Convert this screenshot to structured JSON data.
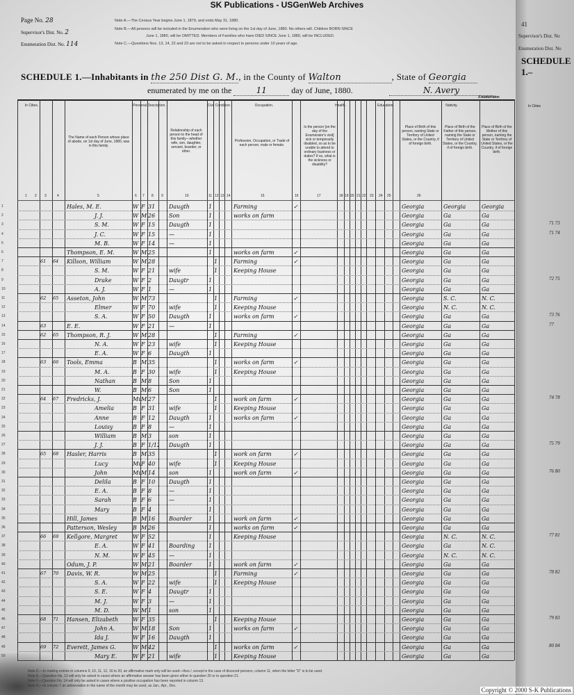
{
  "banner": "SK Publications - USGenWeb Archives",
  "meta": {
    "page_label": "Page No.",
    "page_value": "28",
    "supervisor_label": "Supervisor's Dist. No.",
    "supervisor_value": "2",
    "enumeration_label": "Enumeration Dist. No.",
    "enumeration_value": "114"
  },
  "notes": [
    "Note A.—The Census Year begins June 1, 1879, and ends May 31, 1880.",
    "Note B.—All persons will be included in the Enumeration who were living on the 1st day of June, 1880. No others will. Children BORN SINCE",
    "June 1, 1880, will be OMITTED. Members of Families who have DIED SINCE June 1, 1880, will be INCLUDED.",
    "Note C.—Questions Nos. 13, 14, 22 and 23 are not to be asked in respect to persons under 10 years of age."
  ],
  "schedule": {
    "prefix": "SCHEDULE 1.—Inhabitants in",
    "district": "the 250 Dist G. M.",
    "county_label": ", in the County of",
    "county": "Walton",
    "state_label": ", State of",
    "state": "Georgia",
    "enum_prefix": "enumerated by me on the",
    "enum_day": "11",
    "enum_suffix": "day of June, 1880.",
    "enumerator_signature": "N. Avery",
    "enumerator_label": "Enumerator."
  },
  "column_groups": {
    "in_cities": "In Cities.",
    "personal": "Personal Description.",
    "civil": "Civil Condition.",
    "occupation": "Occupation.",
    "health": "Health.",
    "education": "Education.",
    "nativity": "Nativity."
  },
  "column_headers": {
    "name": "The Name of each Person whose place of abode, on 1st day of June, 1880, was in this family.",
    "relationship": "Relationship of each person to the head of this family—whether wife, son, daughter, servant, boarder, or other.",
    "occupation": "Profession, Occupation, or Trade of each person, male or female.",
    "sickness": "Is the person [on the day of the Enumerator's visit] sick or temporarily disabled, so as to be unable to attend to ordinary business or duties? If so, what is the sickness or disability?",
    "birthplace": "Place of Birth of this person, naming State or Territory of United States, or the Country, if of foreign birth.",
    "father_birth": "Place of Birth of the Father of this person, naming the State or Territory of United States, or the Country, if of foreign birth.",
    "mother_birth": "Place of Birth of the Mother of this person, naming the State or Territory of United States, or the Country, if of foreign birth."
  },
  "column_numbers": [
    "1",
    "2",
    "3",
    "4",
    "5",
    "6",
    "7",
    "8",
    "9",
    "10",
    "11",
    "12",
    "13",
    "14",
    "15",
    "16",
    "17",
    "18",
    "19",
    "20",
    "21",
    "22",
    "23",
    "24",
    "25",
    "26"
  ],
  "rows": [
    {
      "n": "1",
      "dw": "",
      "fam": "",
      "name": "Hales, M. E.",
      "color": "W",
      "sex": "F",
      "age": "31",
      "rel": "Daugth",
      "s": "1",
      "m": "",
      "occ": "Farming",
      "chk": "✓",
      "bp": "Georgia",
      "fbp": "Georgia",
      "mbp": "Georgia"
    },
    {
      "n": "2",
      "dw": "",
      "fam": "",
      "name": "J. J.",
      "color": "W",
      "sex": "M",
      "age": "26",
      "rel": "Son",
      "s": "1",
      "m": "",
      "occ": "works on farm",
      "chk": "",
      "bp": "Georgia",
      "fbp": "Ga",
      "mbp": "Ga"
    },
    {
      "n": "3",
      "dw": "",
      "fam": "",
      "name": "S. M.",
      "color": "W",
      "sex": "F",
      "age": "15",
      "rel": "Daugth",
      "s": "1",
      "m": "",
      "occ": "",
      "chk": "",
      "bp": "Georgia",
      "fbp": "Ga",
      "mbp": "Ga"
    },
    {
      "n": "4",
      "dw": "",
      "fam": "",
      "name": "J. C.",
      "color": "W",
      "sex": "F",
      "age": "15",
      "rel": "—",
      "s": "1",
      "m": "",
      "occ": "",
      "chk": "",
      "bp": "Georgia",
      "fbp": "Ga",
      "mbp": "Ga"
    },
    {
      "n": "5",
      "dw": "",
      "fam": "",
      "name": "M. B.",
      "color": "W",
      "sex": "F",
      "age": "14",
      "rel": "—",
      "s": "1",
      "m": "",
      "occ": "",
      "chk": "",
      "bp": "Georgia",
      "fbp": "Ga",
      "mbp": "Ga"
    },
    {
      "n": "6",
      "dw": "",
      "fam": "",
      "name": "Thompson, E. M.",
      "color": "W",
      "sex": "M",
      "age": "25",
      "rel": "",
      "s": "1",
      "m": "",
      "occ": "works on farm",
      "chk": "✓",
      "bp": "Georgia",
      "fbp": "Ga",
      "mbp": "Ga"
    },
    {
      "n": "7",
      "dw": "61",
      "fam": "64",
      "name": "Killson, William",
      "color": "W",
      "sex": "M",
      "age": "28",
      "rel": "",
      "s": "",
      "m": "1",
      "occ": "Farming",
      "chk": "✓",
      "bp": "Georgia",
      "fbp": "Ga",
      "mbp": "Ga"
    },
    {
      "n": "8",
      "dw": "",
      "fam": "",
      "name": "S. M.",
      "color": "W",
      "sex": "F",
      "age": "21",
      "rel": "wife",
      "s": "",
      "m": "1",
      "occ": "Keeping House",
      "chk": "",
      "bp": "Georgia",
      "fbp": "Ga",
      "mbp": "Ga"
    },
    {
      "n": "9",
      "dw": "",
      "fam": "",
      "name": "Drake",
      "color": "W",
      "sex": "F",
      "age": "2",
      "rel": "Daugtr",
      "s": "1",
      "m": "",
      "occ": "",
      "chk": "",
      "bp": "Georgia",
      "fbp": "Ga",
      "mbp": "Ga"
    },
    {
      "n": "10",
      "dw": "",
      "fam": "",
      "name": "A. J.",
      "color": "W",
      "sex": "F",
      "age": "1",
      "rel": "—",
      "s": "1",
      "m": "",
      "occ": "",
      "chk": "",
      "bp": "Georgia",
      "fbp": "Ga",
      "mbp": "Ga"
    },
    {
      "n": "11",
      "dw": "62",
      "fam": "65",
      "name": "Asseton, John",
      "color": "W",
      "sex": "M",
      "age": "73",
      "rel": "",
      "s": "",
      "m": "1",
      "occ": "Farming",
      "chk": "✓",
      "bp": "Georgia",
      "fbp": "S. C.",
      "mbp": "N. C."
    },
    {
      "n": "12",
      "dw": "",
      "fam": "",
      "name": "Elmer",
      "color": "W",
      "sex": "F",
      "age": "70",
      "rel": "wife",
      "s": "",
      "m": "1",
      "occ": "Keeping House",
      "chk": "",
      "bp": "Georgia",
      "fbp": "N. C.",
      "mbp": "N. C."
    },
    {
      "n": "13",
      "dw": "",
      "fam": "",
      "name": "S. A.",
      "color": "W",
      "sex": "F",
      "age": "50",
      "rel": "Daugth",
      "s": "1",
      "m": "",
      "occ": "works on farm",
      "chk": "✓",
      "bp": "Georgia",
      "fbp": "Ga",
      "mbp": "Ga"
    },
    {
      "n": "14",
      "dw": "63",
      "fam": "",
      "name": "E. E.",
      "color": "W",
      "sex": "F",
      "age": "21",
      "rel": "—",
      "s": "1",
      "m": "",
      "occ": "",
      "chk": "",
      "bp": "Georgia",
      "fbp": "Ga",
      "mbp": "Ga"
    },
    {
      "n": "15",
      "dw": "62",
      "fam": "65",
      "name": "Thompson, R. J.",
      "color": "W",
      "sex": "M",
      "age": "28",
      "rel": "",
      "s": "",
      "m": "1",
      "occ": "Farming",
      "chk": "✓",
      "bp": "Georgia",
      "fbp": "Ga",
      "mbp": "Ga"
    },
    {
      "n": "16",
      "dw": "",
      "fam": "",
      "name": "N. A.",
      "color": "W",
      "sex": "F",
      "age": "23",
      "rel": "wife",
      "s": "",
      "m": "1",
      "occ": "Keeping House",
      "chk": "",
      "bp": "Georgia",
      "fbp": "Ga",
      "mbp": "Ga"
    },
    {
      "n": "17",
      "dw": "",
      "fam": "",
      "name": "E. A.",
      "color": "W",
      "sex": "F",
      "age": "6",
      "rel": "Daugth",
      "s": "1",
      "m": "",
      "occ": "",
      "chk": "",
      "bp": "Georgia",
      "fbp": "Ga",
      "mbp": "Ga"
    },
    {
      "n": "18",
      "dw": "63",
      "fam": "66",
      "name": "Tools, Emma",
      "color": "B",
      "sex": "M",
      "age": "35",
      "rel": "",
      "s": "",
      "m": "1",
      "occ": "works on farm",
      "chk": "✓",
      "bp": "Georgia",
      "fbp": "Ga",
      "mbp": "Ga"
    },
    {
      "n": "19",
      "dw": "",
      "fam": "",
      "name": "M. A.",
      "color": "B",
      "sex": "F",
      "age": "30",
      "rel": "wife",
      "s": "",
      "m": "1",
      "occ": "Keeping House",
      "chk": "",
      "bp": "Georgia",
      "fbp": "Ga",
      "mbp": "Ga"
    },
    {
      "n": "20",
      "dw": "",
      "fam": "",
      "name": "Nathan",
      "color": "B",
      "sex": "M",
      "age": "8",
      "rel": "Son",
      "s": "1",
      "m": "",
      "occ": "",
      "chk": "",
      "bp": "Georgia",
      "fbp": "Ga",
      "mbp": "Ga"
    },
    {
      "n": "21",
      "dw": "",
      "fam": "",
      "name": "W.",
      "color": "B",
      "sex": "M",
      "age": "6",
      "rel": "Son",
      "s": "1",
      "m": "",
      "occ": "",
      "chk": "",
      "bp": "Georgia",
      "fbp": "Ga",
      "mbp": "Ga"
    },
    {
      "n": "22",
      "dw": "64",
      "fam": "67",
      "name": "Fredricks, J.",
      "color": "Mu",
      "sex": "M",
      "age": "27",
      "rel": "",
      "s": "",
      "m": "1",
      "occ": "work on farm",
      "chk": "✓",
      "bp": "Georgia",
      "fbp": "Ga",
      "mbp": "Ga"
    },
    {
      "n": "23",
      "dw": "",
      "fam": "",
      "name": "Amelia",
      "color": "B",
      "sex": "F",
      "age": "31",
      "rel": "wife",
      "s": "",
      "m": "1",
      "occ": "Keeping House",
      "chk": "",
      "bp": "Georgia",
      "fbp": "Ga",
      "mbp": "Ga"
    },
    {
      "n": "24",
      "dw": "",
      "fam": "",
      "name": "Anne",
      "color": "B",
      "sex": "F",
      "age": "12",
      "rel": "Daugth",
      "s": "1",
      "m": "",
      "occ": "works on farm",
      "chk": "✓",
      "bp": "Georgia",
      "fbp": "Ga",
      "mbp": "Ga"
    },
    {
      "n": "25",
      "dw": "",
      "fam": "",
      "name": "Louisy",
      "color": "B",
      "sex": "F",
      "age": "8",
      "rel": "—",
      "s": "1",
      "m": "",
      "occ": "",
      "chk": "",
      "bp": "Georgia",
      "fbp": "Ga",
      "mbp": "Ga"
    },
    {
      "n": "26",
      "dw": "",
      "fam": "",
      "name": "William",
      "color": "B",
      "sex": "M",
      "age": "3",
      "rel": "son",
      "s": "1",
      "m": "",
      "occ": "",
      "chk": "",
      "bp": "Georgia",
      "fbp": "Ga",
      "mbp": "Ga"
    },
    {
      "n": "27",
      "dw": "",
      "fam": "",
      "name": "J. J.",
      "color": "B",
      "sex": "F",
      "age": "1/12",
      "rel": "Daugth",
      "s": "1",
      "m": "",
      "occ": "",
      "chk": "",
      "bp": "Georgia",
      "fbp": "Ga",
      "mbp": "Ga"
    },
    {
      "n": "28",
      "dw": "65",
      "fam": "68",
      "name": "Hasler, Harris",
      "color": "B",
      "sex": "M",
      "age": "35",
      "rel": "",
      "s": "",
      "m": "1",
      "occ": "work on farm",
      "chk": "✓",
      "bp": "Georgia",
      "fbp": "Ga",
      "mbp": "Ga"
    },
    {
      "n": "29",
      "dw": "",
      "fam": "",
      "name": "Lucy",
      "color": "Mu",
      "sex": "F",
      "age": "40",
      "rel": "wife",
      "s": "",
      "m": "1",
      "occ": "Keeping House",
      "chk": "",
      "bp": "Georgia",
      "fbp": "Ga",
      "mbp": "Ga"
    },
    {
      "n": "30",
      "dw": "",
      "fam": "",
      "name": "John",
      "color": "Mu",
      "sex": "M",
      "age": "14",
      "rel": "son",
      "s": "1",
      "m": "",
      "occ": "work on farm",
      "chk": "✓",
      "bp": "Georgia",
      "fbp": "Ga",
      "mbp": "Ga"
    },
    {
      "n": "31",
      "dw": "",
      "fam": "",
      "name": "Delila",
      "color": "B",
      "sex": "F",
      "age": "10",
      "rel": "Daugth",
      "s": "1",
      "m": "",
      "occ": "",
      "chk": "",
      "bp": "Georgia",
      "fbp": "Ga",
      "mbp": "Ga"
    },
    {
      "n": "32",
      "dw": "",
      "fam": "",
      "name": "E. A.",
      "color": "B",
      "sex": "F",
      "age": "8",
      "rel": "—",
      "s": "1",
      "m": "",
      "occ": "",
      "chk": "",
      "bp": "Georgia",
      "fbp": "Ga",
      "mbp": "Ga"
    },
    {
      "n": "33",
      "dw": "",
      "fam": "",
      "name": "Sarah",
      "color": "B",
      "sex": "F",
      "age": "6",
      "rel": "—",
      "s": "1",
      "m": "",
      "occ": "",
      "chk": "",
      "bp": "Georgia",
      "fbp": "Ga",
      "mbp": "Ga"
    },
    {
      "n": "34",
      "dw": "",
      "fam": "",
      "name": "Mary",
      "color": "B",
      "sex": "F",
      "age": "4",
      "rel": "",
      "s": "1",
      "m": "",
      "occ": "",
      "chk": "",
      "bp": "Georgia",
      "fbp": "Ga",
      "mbp": "Ga"
    },
    {
      "n": "35",
      "dw": "",
      "fam": "",
      "name": "Hill, James",
      "color": "B",
      "sex": "M",
      "age": "16",
      "rel": "Boarder",
      "s": "1",
      "m": "",
      "occ": "work on farm",
      "chk": "✓",
      "bp": "Georgia",
      "fbp": "Ga",
      "mbp": "Ga"
    },
    {
      "n": "36",
      "dw": "",
      "fam": "",
      "name": "Patterson, Wesley",
      "color": "B",
      "sex": "M",
      "age": "26",
      "rel": "",
      "s": "1",
      "m": "",
      "occ": "works on farm",
      "chk": "✓",
      "bp": "Georgia",
      "fbp": "Ga",
      "mbp": "Ga"
    },
    {
      "n": "37",
      "dw": "66",
      "fam": "69",
      "name": "Kellgore, Margret",
      "color": "W",
      "sex": "F",
      "age": "52",
      "rel": "",
      "s": "1",
      "m": "",
      "occ": "Keeping House",
      "chk": "",
      "bp": "Georgia",
      "fbp": "N. C.",
      "mbp": "N. C."
    },
    {
      "n": "38",
      "dw": "",
      "fam": "",
      "name": "E. A.",
      "color": "W",
      "sex": "F",
      "age": "41",
      "rel": "Boarding",
      "s": "1",
      "m": "",
      "occ": "",
      "chk": "",
      "bp": "Georgia",
      "fbp": "Ga",
      "mbp": "N. C."
    },
    {
      "n": "39",
      "dw": "",
      "fam": "",
      "name": "N. M.",
      "color": "W",
      "sex": "F",
      "age": "45",
      "rel": "—",
      "s": "1",
      "m": "",
      "occ": "",
      "chk": "",
      "bp": "Georgia",
      "fbp": "N. C.",
      "mbp": "N. C."
    },
    {
      "n": "40",
      "dw": "",
      "fam": "",
      "name": "Odum, J. P.",
      "color": "W",
      "sex": "M",
      "age": "21",
      "rel": "Boarder",
      "s": "1",
      "m": "",
      "occ": "work on farm",
      "chk": "✓",
      "bp": "Georgia",
      "fbp": "Ga",
      "mbp": "Ga"
    },
    {
      "n": "41",
      "dw": "67",
      "fam": "70",
      "name": "Davis, W. R.",
      "color": "W",
      "sex": "M",
      "age": "25",
      "rel": "",
      "s": "",
      "m": "1",
      "occ": "Farming",
      "chk": "✓",
      "bp": "Georgia",
      "fbp": "Ga",
      "mbp": "Ga"
    },
    {
      "n": "42",
      "dw": "",
      "fam": "",
      "name": "S. A.",
      "color": "W",
      "sex": "F",
      "age": "22",
      "rel": "wife",
      "s": "",
      "m": "1",
      "occ": "Keeping House",
      "chk": "",
      "bp": "Georgia",
      "fbp": "Ga",
      "mbp": "Ga"
    },
    {
      "n": "43",
      "dw": "",
      "fam": "",
      "name": "S. E.",
      "color": "W",
      "sex": "F",
      "age": "4",
      "rel": "Daugtr",
      "s": "1",
      "m": "",
      "occ": "",
      "chk": "",
      "bp": "Georgia",
      "fbp": "Ga",
      "mbp": "Ga"
    },
    {
      "n": "44",
      "dw": "",
      "fam": "",
      "name": "M. J.",
      "color": "W",
      "sex": "F",
      "age": "3",
      "rel": "—",
      "s": "1",
      "m": "",
      "occ": "",
      "chk": "",
      "bp": "Georgia",
      "fbp": "Ga",
      "mbp": "Ga"
    },
    {
      "n": "45",
      "dw": "",
      "fam": "",
      "name": "M. D.",
      "color": "W",
      "sex": "M",
      "age": "1",
      "rel": "son",
      "s": "1",
      "m": "",
      "occ": "",
      "chk": "",
      "bp": "Georgia",
      "fbp": "Ga",
      "mbp": "Ga"
    },
    {
      "n": "46",
      "dw": "68",
      "fam": "71",
      "name": "Hansen, Elizabeth",
      "color": "W",
      "sex": "F",
      "age": "35",
      "rel": "",
      "s": "",
      "m": "1",
      "occ": "Keeping House",
      "chk": "",
      "bp": "Georgia",
      "fbp": "Ga",
      "mbp": "Ga"
    },
    {
      "n": "47",
      "dw": "",
      "fam": "",
      "name": "John A.",
      "color": "W",
      "sex": "M",
      "age": "18",
      "rel": "Son",
      "s": "1",
      "m": "",
      "occ": "works on farm",
      "chk": "✓",
      "bp": "Georgia",
      "fbp": "Ga",
      "mbp": "Ga"
    },
    {
      "n": "48",
      "dw": "",
      "fam": "",
      "name": "Ida J.",
      "color": "W",
      "sex": "F",
      "age": "16",
      "rel": "Daugth",
      "s": "1",
      "m": "",
      "occ": "",
      "chk": "",
      "bp": "Georgia",
      "fbp": "Ga",
      "mbp": "Ga"
    },
    {
      "n": "49",
      "dw": "69",
      "fam": "72",
      "name": "Everett, James G.",
      "color": "W",
      "sex": "M",
      "age": "42",
      "rel": "",
      "s": "",
      "m": "1",
      "occ": "works on farm",
      "chk": "✓",
      "bp": "Georgia",
      "fbp": "Ga",
      "mbp": "Ga"
    },
    {
      "n": "50",
      "dw": "",
      "fam": "",
      "name": "Mary E.",
      "color": "W",
      "sex": "F",
      "age": "21",
      "rel": "wife",
      "s": "",
      "m": "1",
      "occ": "Keeping House",
      "chk": "",
      "bp": "Georgia",
      "fbp": "Ga",
      "mbp": "Ga"
    }
  ],
  "right_page": {
    "page_value": "41",
    "supervisor_label": "Supervisor's Dist. No",
    "enumeration_label": "Enumeration Dist. No",
    "schedule_prefix": "SCHEDULE 1.–",
    "in_cities": "In Cities",
    "dwelling_numbers": [
      "71 73",
      "71 74",
      "72 75",
      "73 76",
      "77",
      "74 78",
      "75 79",
      "76 80",
      "77 81",
      "78 82",
      "79 83",
      "80 84"
    ]
  },
  "footnotes": [
    "Note D.—In making entries in columns 9, 10, 11, 12, 16 to 20, an affirmative mark only will be used—thus /, except in the case of divorced persons, column 11, when the letter \"D\" is to be used.",
    "Note E.—Question No. 13 will only be asked in cases where an affirmative answer has been given either to question 20 or to question 21.",
    "Note F.—Question No. 14 will only be asked in cases where a positive occupation has been reported in column 13.",
    "Note G.—In column 7 an abbreviation in the name of the month may be used, as Jan., Apr., Dec."
  ],
  "copyright": "Copyright © 2000 S-K Publications"
}
